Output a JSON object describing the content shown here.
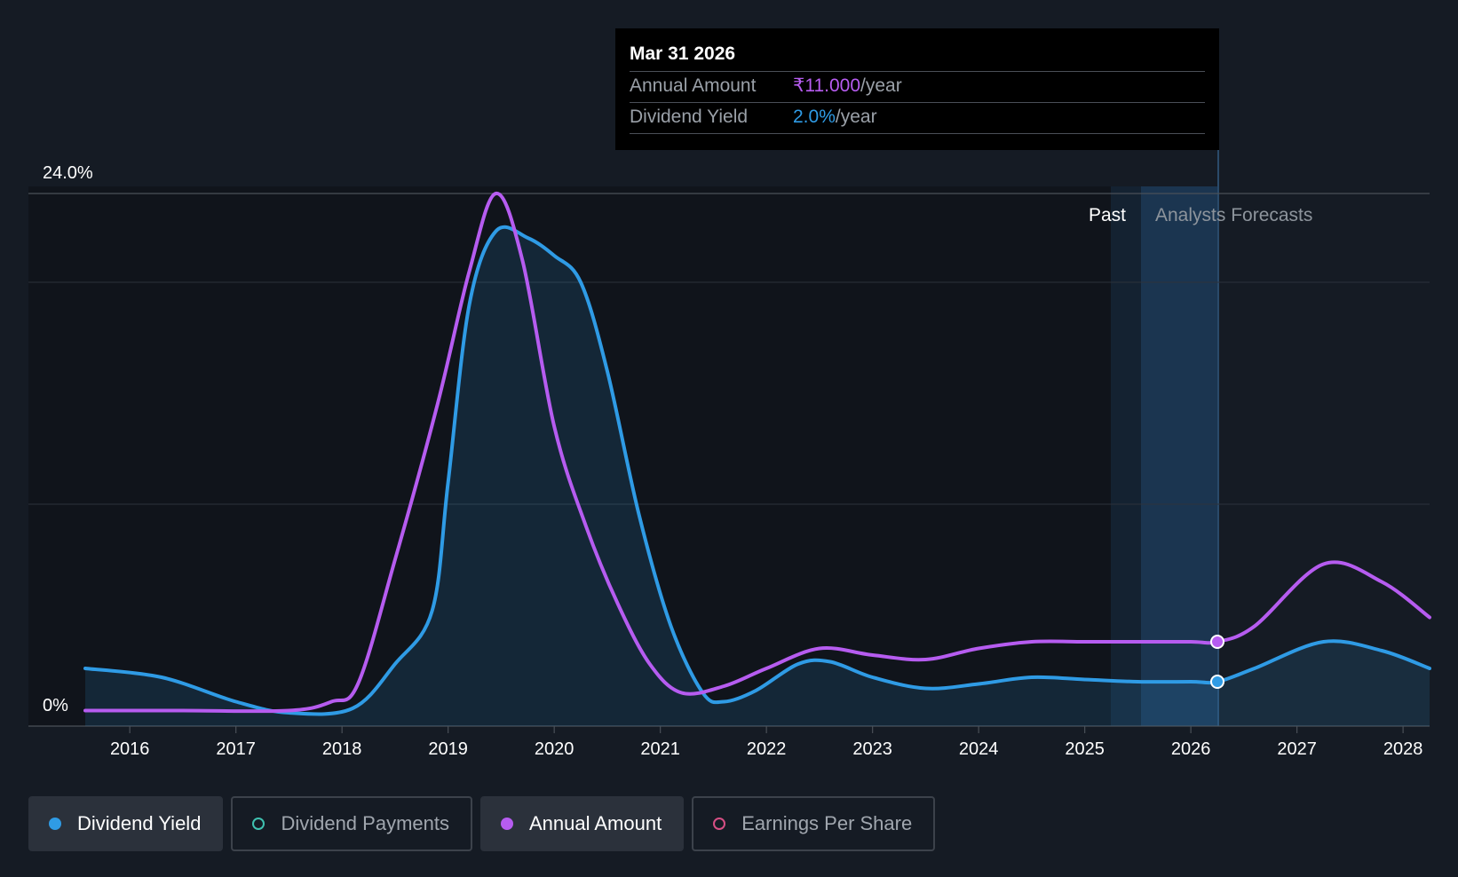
{
  "tooltip": {
    "date": "Mar 31 2026",
    "annual_amount_label": "Annual Amount",
    "annual_amount_value": "₹11.000",
    "annual_amount_suffix": "/year",
    "dividend_yield_label": "Dividend Yield",
    "dividend_yield_value": "2.0%",
    "dividend_yield_suffix": "/year"
  },
  "regions": {
    "past_label": "Past",
    "forecast_label": "Analysts Forecasts"
  },
  "legend": [
    {
      "label": "Dividend Yield",
      "color": "#2f9be5",
      "active": true,
      "filled": true,
      "icon": "filled-circle-icon"
    },
    {
      "label": "Dividend Payments",
      "color": "#3fc1b0",
      "active": false,
      "filled": false,
      "icon": "hollow-circle-icon"
    },
    {
      "label": "Annual Amount",
      "color": "#b65cf0",
      "active": true,
      "filled": true,
      "icon": "filled-circle-icon"
    },
    {
      "label": "Earnings Per Share",
      "color": "#d64f84",
      "active": false,
      "filled": false,
      "icon": "hollow-circle-icon"
    }
  ],
  "colors": {
    "background": "#151b24",
    "dividend_yield": "#2f9be5",
    "annual_amount": "#b65cf0",
    "grid": "#3a4049",
    "forecast_band": "#1c3a58"
  },
  "chart_data": {
    "type": "line",
    "y_tick_labels": [
      "24.0%",
      "0%"
    ],
    "ylim": [
      0,
      24
    ],
    "x_tick_labels": [
      "2016",
      "2017",
      "2018",
      "2019",
      "2020",
      "2021",
      "2022",
      "2023",
      "2024",
      "2025",
      "2026",
      "2027",
      "2028"
    ],
    "xlim": [
      2015.58,
      2028.25
    ],
    "grid": true,
    "past_forecast_boundary": 2025.25,
    "tooltip_x": 2026.25,
    "series": [
      {
        "name": "Dividend Yield",
        "color": "#2f9be5",
        "area": true,
        "x": [
          2015.58,
          2016.3,
          2017.0,
          2017.5,
          2018.1,
          2018.5,
          2018.85,
          2019.0,
          2019.2,
          2019.45,
          2019.75,
          2020.0,
          2020.25,
          2020.5,
          2020.8,
          2021.1,
          2021.4,
          2021.6,
          2021.9,
          2022.3,
          2022.6,
          2023.0,
          2023.5,
          2024.0,
          2024.5,
          2025.0,
          2025.5,
          2026.0,
          2026.25,
          2026.6,
          2027.25,
          2027.8,
          2028.25
        ],
        "y": [
          2.6,
          2.2,
          1.1,
          0.6,
          0.8,
          2.8,
          5.2,
          11.0,
          19.0,
          22.3,
          22.0,
          21.2,
          20.0,
          16.0,
          9.5,
          4.5,
          1.5,
          1.1,
          1.6,
          2.8,
          2.9,
          2.2,
          1.7,
          1.9,
          2.2,
          2.1,
          2.0,
          2.0,
          2.0,
          2.6,
          3.8,
          3.4,
          2.6
        ]
      },
      {
        "name": "Annual Amount",
        "color": "#b65cf0",
        "area": false,
        "x": [
          2015.58,
          2016.5,
          2017.5,
          2017.9,
          2018.15,
          2018.5,
          2018.9,
          2019.2,
          2019.45,
          2019.7,
          2020.0,
          2020.3,
          2020.6,
          2020.9,
          2021.2,
          2021.6,
          2022.0,
          2022.5,
          2023.0,
          2023.5,
          2024.0,
          2024.5,
          2025.0,
          2025.5,
          2026.0,
          2026.25,
          2026.6,
          2027.25,
          2027.8,
          2028.25
        ],
        "y": [
          0.7,
          0.7,
          0.7,
          1.1,
          1.9,
          7.5,
          14.5,
          20.5,
          24.0,
          21.0,
          13.5,
          9.0,
          5.5,
          2.8,
          1.5,
          1.8,
          2.6,
          3.5,
          3.2,
          3.0,
          3.5,
          3.8,
          3.8,
          3.8,
          3.8,
          3.8,
          4.5,
          7.3,
          6.5,
          4.9
        ]
      }
    ],
    "highlight_points": [
      {
        "series": "Annual Amount",
        "x": 2026.25,
        "y": 3.8
      },
      {
        "series": "Dividend Yield",
        "x": 2026.25,
        "y": 2.0
      }
    ]
  }
}
